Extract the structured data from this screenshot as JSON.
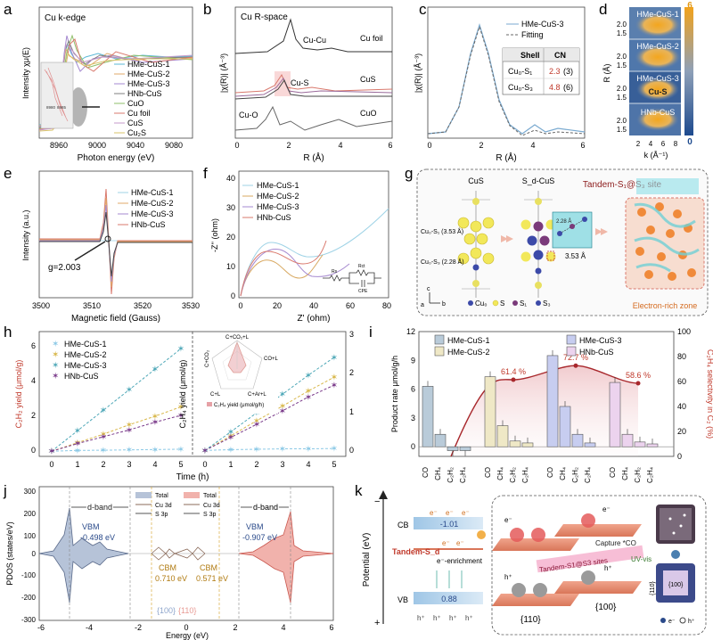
{
  "panel_letters": [
    "a",
    "b",
    "c",
    "d",
    "e",
    "f",
    "g",
    "h",
    "i",
    "j",
    "k"
  ],
  "a": {
    "inset_title": "Cu k-edge",
    "xlabel": "Photon energy (eV)",
    "ylabel": "Intensity χμ(E)",
    "xticks": [
      "8960",
      "9000",
      "9040",
      "9080"
    ],
    "zoom_ticks": [
      "8980",
      "8985"
    ],
    "legend": [
      "HMe-CuS-1",
      "HMe-CuS-2",
      "HMe-CuS-3",
      "HNb-CuS",
      "CuO",
      "Cu foil",
      "CuS",
      "Cu₂S"
    ],
    "colors": [
      "#5bb9d6",
      "#e0a86a",
      "#a68ad0",
      "#7f7f7f",
      "#8fbf6a",
      "#d9786c",
      "#c59acb",
      "#d8c36a"
    ]
  },
  "b": {
    "inset_title": "Cu R-space",
    "xlabel": "R (Å)",
    "ylabel": "|χ(R)| (Å⁻³)",
    "xticks": [
      "0",
      "2",
      "4",
      "6"
    ],
    "labels": [
      "Cu-Cu",
      "Cu foil",
      "Cu-S",
      "CuS",
      "Cu-O",
      "CuO"
    ]
  },
  "c": {
    "xlabel": "R (Å)",
    "ylabel": "|χ(R)| (Å⁻³)",
    "xticks": [
      "0",
      "2",
      "4",
      "6"
    ],
    "legend": [
      "HMe-CuS-3",
      "Fitting"
    ],
    "table_headers": [
      "Shell",
      "CN"
    ],
    "table_rows": [
      [
        "Cu₀-S₁",
        "2.3",
        "(3)"
      ],
      [
        "Cu₀-S₃",
        "4.8",
        "(6)"
      ]
    ]
  },
  "d": {
    "xlabel": "k (Å⁻¹)",
    "ylabel": "R (Å)",
    "xticks": [
      "2",
      "4",
      "6",
      "8"
    ],
    "yticks": [
      "1.5",
      "2.0"
    ],
    "labels": [
      "HMe-CuS-1",
      "HMe-CuS-2",
      "HMe-CuS-3",
      "Cu-S",
      "HNb-CuS"
    ],
    "colorbar": [
      "6",
      "0"
    ]
  },
  "e": {
    "xlabel": "Magnetic field (Gauss)",
    "ylabel": "Intensity (a.u.)",
    "xticks": [
      "3500",
      "3510",
      "3520",
      "3530"
    ],
    "legend": [
      "HMe-CuS-1",
      "HMe-CuS-2",
      "HMe-CuS-3",
      "HNb-CuS"
    ],
    "gvalue": "g=2.003"
  },
  "f": {
    "xlabel": "Z' (ohm)",
    "ylabel": "-Z'' (ohm)",
    "xticks": [
      "0",
      "20",
      "40",
      "60",
      "80"
    ],
    "yticks": [
      "0",
      "10",
      "20",
      "30",
      "40"
    ],
    "legend": [
      "HMe-CuS-1",
      "HMe-CuS-2",
      "HMe-CuS-3",
      "HNb-CuS"
    ],
    "circuit": [
      "Rs",
      "Rct",
      "CPE"
    ]
  },
  "g": {
    "titles": [
      "CuS",
      "S_d-CuS"
    ],
    "site_title": "Tandem-S₁@S₃ site",
    "labels": [
      "Cu₀-S₁ (3.53 Å)",
      "Cu₀-S₃ (2.28 Å)",
      "2.28 Å",
      "3.53 Å",
      "Electron-rich zone"
    ],
    "legend": [
      "Cu₀",
      "S",
      "S₁",
      "S₃"
    ],
    "axes": [
      "c",
      "a",
      "b"
    ]
  },
  "h": {
    "xlabel": "Time (h)",
    "ylabel_left": "C₂H₂ yield (μmol/g)",
    "ylabel_right": "C₂H₄ yield (μmol/g)",
    "xticks": [
      "0",
      "1",
      "2",
      "3",
      "4",
      "5"
    ],
    "yticks_left": [
      "0",
      "2",
      "4",
      "6"
    ],
    "yticks_right": [
      "0",
      "1",
      "2",
      "3"
    ],
    "legend": [
      "HMe-CuS-1",
      "HMe-CuS-2",
      "HMe-CuS-3",
      "HNb-CuS"
    ],
    "radar_labels": [
      "C+CO₂+L",
      "CO+L",
      "C+Ar+L",
      "C+L",
      "C+CO₂"
    ],
    "radar_caption": "C₂H₄ yield (μmol/g/h)"
  },
  "i": {
    "ylabel_left": "Product rate μmol/g/h",
    "ylabel_right": "C₂H₄ selectivity in C₂ (%)",
    "yticks_left": [
      "0",
      "3",
      "6",
      "9",
      "12"
    ],
    "yticks_right": [
      "0",
      "20",
      "40",
      "60",
      "80",
      "100"
    ],
    "legend": [
      "HMe-CuS-1",
      "HMe-CuS-2",
      "HMe-CuS-3",
      "HNb-CuS"
    ],
    "selectivity_labels": [
      "61.4 %",
      "72.7 %",
      "58.6 %"
    ],
    "category_labels": [
      "CO",
      "CH₄",
      "C₂H₂",
      "C₂H₄"
    ]
  },
  "j": {
    "xlabel": "Energy (eV)",
    "ylabel": "PDOS (states/eV)",
    "xticks": [
      "-6",
      "-4",
      "-2",
      "0",
      "2",
      "4",
      "6"
    ],
    "yticks": [
      "-300",
      "-200",
      "-100",
      "0",
      "100",
      "200",
      "300"
    ],
    "labels": [
      "d-band",
      "VBM",
      "-0.498 eV",
      "CBM",
      "0.710 eV",
      "CBM",
      "0.571 eV",
      "VBM",
      "-0.907 eV",
      "d-band",
      "{100}",
      "{110}"
    ],
    "legend_left": [
      "Total",
      "Cu 3d",
      "S 3p"
    ],
    "legend_right": [
      "Total",
      "Cu 3d",
      "S 3p"
    ]
  },
  "k": {
    "ylabel": "Potential (eV)",
    "cb": "CB",
    "vb": "VB",
    "cb_value": "-1.01",
    "vb_value": "0.88",
    "tandem": "Tandem-S_d",
    "enrich": "e⁻-enrichment",
    "sites_label": "Tandem-S1@S3 sites",
    "capture": "Capture *CO",
    "facets": [
      "{110}",
      "{100}"
    ],
    "uv": "UV-vis",
    "legend": [
      "e⁻",
      "h⁺"
    ],
    "small_labels": [
      "{110}",
      "{100}"
    ]
  },
  "chart_data": [
    {
      "id": "h",
      "type": "line",
      "xlabel": "Time (h)",
      "x": [
        0,
        1,
        2,
        3,
        4,
        5
      ],
      "left_series": [
        {
          "name": "HMe-CuS-1",
          "values": [
            0,
            0.05,
            0.06,
            0.08,
            0.1,
            0.12
          ]
        },
        {
          "name": "HMe-CuS-2",
          "values": [
            0,
            0.5,
            1.0,
            1.55,
            2.05,
            2.6
          ]
        },
        {
          "name": "HMe-CuS-3",
          "values": [
            0,
            1.2,
            2.4,
            3.6,
            4.8,
            6.0
          ]
        },
        {
          "name": "HNb-CuS",
          "values": [
            0,
            0.45,
            0.85,
            1.25,
            1.7,
            2.1
          ]
        }
      ],
      "right_series": [
        {
          "name": "HMe-CuS-1",
          "values": [
            0,
            0.02,
            0.03,
            0.04,
            0.04,
            0.05
          ]
        },
        {
          "name": "HMe-CuS-2",
          "values": [
            0,
            0.37,
            0.75,
            1.12,
            1.5,
            1.85
          ]
        },
        {
          "name": "HMe-CuS-3",
          "values": [
            0,
            0.47,
            0.95,
            1.42,
            1.9,
            2.35
          ]
        },
        {
          "name": "HNb-CuS",
          "values": [
            0,
            0.33,
            0.66,
            1.0,
            1.35,
            1.65
          ]
        }
      ],
      "ylim_left": [
        -0.3,
        7
      ],
      "ylim_right": [
        -0.15,
        3
      ]
    },
    {
      "id": "i",
      "type": "bar",
      "categories": [
        "CO",
        "CH₄",
        "C₂H₂",
        "C₂H₄"
      ],
      "series": [
        {
          "name": "HMe-CuS-1",
          "values": [
            6.3,
            1.3,
            -0.4,
            -0.4
          ]
        },
        {
          "name": "HMe-CuS-2",
          "values": [
            7.3,
            2.2,
            0.6,
            0.4
          ]
        },
        {
          "name": "HMe-CuS-3",
          "values": [
            9.5,
            4.2,
            1.3,
            0.4
          ]
        },
        {
          "name": "HNb-CuS",
          "values": [
            6.7,
            1.3,
            0.5,
            0.3
          ]
        }
      ],
      "selectivity": [
        {
          "x": 0,
          "value": 0
        },
        {
          "x": 1,
          "value": 61.4
        },
        {
          "x": 2,
          "value": 72.7
        },
        {
          "x": 3,
          "value": 58.6
        }
      ],
      "ylim": [
        -1,
        12
      ],
      "ylim_right": [
        0,
        100
      ]
    }
  ]
}
